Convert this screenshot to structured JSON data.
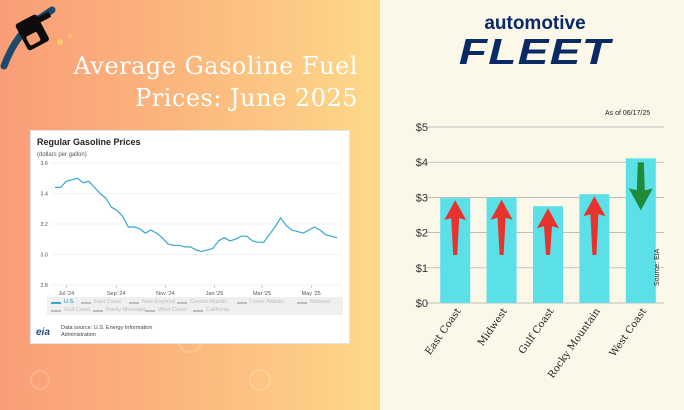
{
  "headline": {
    "line1": "Average Gasoline Fuel",
    "line2": "Prices: June 2025"
  },
  "brand": {
    "top": "automotive",
    "bottom": "FLEET"
  },
  "eia_card": {
    "title": "Regular Gasoline Prices",
    "subtitle": "(dollars per gallon)",
    "source": "Data source: U.S. Energy Information Administration",
    "logo": "eia",
    "legend": [
      {
        "label": "U.S.",
        "active": true
      },
      {
        "label": "East Coast",
        "active": false
      },
      {
        "label": "New England",
        "active": false
      },
      {
        "label": "Central Atlantic",
        "active": false
      },
      {
        "label": "Lower Atlantic",
        "active": false
      },
      {
        "label": "Midwest",
        "active": false
      },
      {
        "label": "Gulf Coast",
        "active": false
      },
      {
        "label": "Rocky Mountain",
        "active": false
      },
      {
        "label": "West Coast",
        "active": false
      },
      {
        "label": "California",
        "active": false
      }
    ]
  },
  "chart_data": [
    {
      "type": "line",
      "title": "Regular Gasoline Prices",
      "ylabel": "(dollars per gallon)",
      "ylim": [
        2.8,
        3.6
      ],
      "yticks": [
        "3.6",
        "3.4",
        "3.2",
        "3.0",
        "2.8"
      ],
      "xticks": [
        "Jul '24",
        "Sep '24",
        "Nov '24",
        "Jan '25",
        "Mar '25",
        "May '25"
      ],
      "color": "#35a7cf",
      "series": [
        {
          "name": "U.S.",
          "x": [
            "2024-07-01",
            "2024-07-08",
            "2024-07-15",
            "2024-07-22",
            "2024-07-29",
            "2024-08-05",
            "2024-08-12",
            "2024-08-19",
            "2024-08-26",
            "2024-09-02",
            "2024-09-09",
            "2024-09-16",
            "2024-09-23",
            "2024-09-30",
            "2024-10-07",
            "2024-10-14",
            "2024-10-21",
            "2024-10-28",
            "2024-11-04",
            "2024-11-11",
            "2024-11-18",
            "2024-11-25",
            "2024-12-02",
            "2024-12-09",
            "2024-12-16",
            "2024-12-23",
            "2024-12-30",
            "2025-01-06",
            "2025-01-13",
            "2025-01-20",
            "2025-01-27",
            "2025-02-03",
            "2025-02-10",
            "2025-02-17",
            "2025-02-24",
            "2025-03-03",
            "2025-03-10",
            "2025-03-17",
            "2025-03-24",
            "2025-03-31",
            "2025-04-07",
            "2025-04-14",
            "2025-04-21",
            "2025-04-28",
            "2025-05-05",
            "2025-05-12",
            "2025-05-19",
            "2025-05-26",
            "2025-06-02",
            "2025-06-09",
            "2025-06-16"
          ],
          "y": [
            3.44,
            3.44,
            3.48,
            3.49,
            3.5,
            3.47,
            3.48,
            3.44,
            3.4,
            3.37,
            3.31,
            3.29,
            3.25,
            3.18,
            3.18,
            3.17,
            3.14,
            3.16,
            3.14,
            3.11,
            3.07,
            3.06,
            3.06,
            3.05,
            3.05,
            3.03,
            3.02,
            3.03,
            3.04,
            3.09,
            3.11,
            3.09,
            3.1,
            3.12,
            3.12,
            3.09,
            3.08,
            3.08,
            3.13,
            3.18,
            3.24,
            3.19,
            3.16,
            3.15,
            3.14,
            3.16,
            3.18,
            3.16,
            3.13,
            3.12,
            3.11
          ]
        }
      ]
    },
    {
      "type": "bar",
      "note": "As of 06/17/25",
      "source": "Source: EIA",
      "categories": [
        "East Coast",
        "Midwest",
        "Gulf Coast",
        "Rocky Mountain",
        "West Coast"
      ],
      "values": [
        2.98,
        2.99,
        2.75,
        3.09,
        4.11
      ],
      "trend": [
        "up",
        "up",
        "up",
        "up",
        "down"
      ],
      "ylim": [
        0,
        5
      ],
      "yticks": [
        "$0",
        "$1",
        "$2",
        "$3",
        "$4",
        "$5"
      ],
      "bar_color": "#5ae0e6",
      "up_color": "#e8322e",
      "down_color": "#1e8a3a"
    }
  ]
}
